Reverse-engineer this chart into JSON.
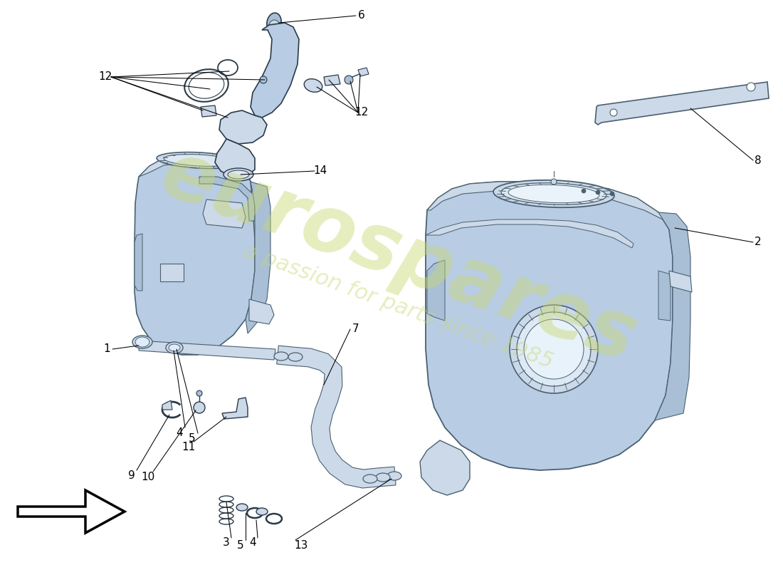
{
  "bg_color": "#ffffff",
  "fill_blue": "#b8cce4",
  "fill_blue_light": "#ccd9e8",
  "fill_blue_mid": "#a8bfd6",
  "edge_color": "#4a6070",
  "edge_dark": "#2a3a48",
  "watermark1": "eurospares",
  "watermark2": "a passion for parts since 1985",
  "wm_color": "#c8d870",
  "label_color": "#000000",
  "leader_color": "#000000"
}
